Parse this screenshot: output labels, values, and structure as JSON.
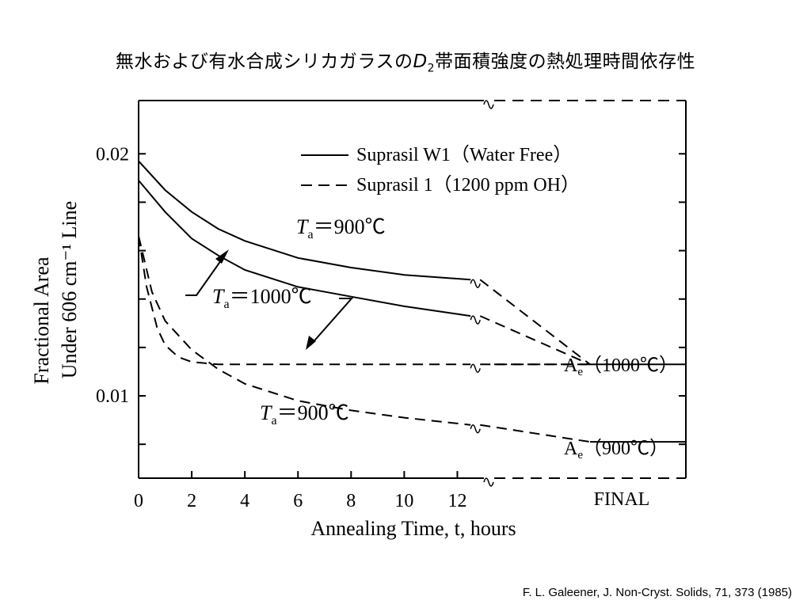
{
  "title": {
    "prefix": "無水および有水合成シリカガラスの",
    "symbol": "D",
    "subscript": "2",
    "suffix": "帯面積強度の熱処理時間依存性"
  },
  "citation": "F. L. Galeener, J. Non-Cryst. Solids, 71, 373 (1985)",
  "chart_data": {
    "type": "line",
    "xlabel": "Annealing Time, t, hours",
    "ylabel_line1": "Fractional Area",
    "ylabel_line2": "Under 606 cm⁻¹ Line",
    "xlim": [
      0,
      13
    ],
    "ylim": [
      0.0066,
      0.0222
    ],
    "x_ticks": [
      0,
      2,
      4,
      6,
      8,
      10,
      12
    ],
    "x_extra_tick": "FINAL",
    "y_tick_labels": [
      {
        "value": 0.02,
        "label": "0.02"
      },
      {
        "value": 0.01,
        "label": "0.01"
      }
    ],
    "legend": [
      {
        "label": "Suprasil W1（Water Free）",
        "style": "solid"
      },
      {
        "label": "Suprasil 1（1200 ppm OH）",
        "style": "dashed"
      }
    ],
    "series": [
      {
        "style": "solid",
        "temp": "900℃",
        "x": [
          0,
          1,
          2,
          3,
          4,
          6,
          8,
          10,
          12.5
        ],
        "y": [
          0.0197,
          0.0185,
          0.0176,
          0.0169,
          0.0164,
          0.0157,
          0.0153,
          0.015,
          0.0148
        ],
        "final": 0.0113
      },
      {
        "style": "solid",
        "temp": "1000℃",
        "x": [
          0,
          1,
          2,
          3,
          4,
          6,
          8,
          10,
          12.5
        ],
        "y": [
          0.0189,
          0.0176,
          0.0165,
          0.0158,
          0.0152,
          0.0145,
          0.0141,
          0.0137,
          0.0133
        ],
        "final": 0.0113
      },
      {
        "style": "dashed",
        "temp": "1000℃",
        "x": [
          0,
          0.3,
          0.7,
          1,
          1.5,
          2,
          3,
          4,
          6,
          8,
          10,
          12.5
        ],
        "y": [
          0.0166,
          0.0145,
          0.0128,
          0.0121,
          0.0116,
          0.0114,
          0.0113,
          0.0113,
          0.0113,
          0.0113,
          0.0113,
          0.0113
        ],
        "final": 0.0113
      },
      {
        "style": "dashed",
        "temp": "900℃",
        "x": [
          0,
          0.5,
          1,
          2,
          3,
          4,
          6,
          8,
          10,
          12.5
        ],
        "y": [
          0.0166,
          0.0143,
          0.0131,
          0.0119,
          0.0111,
          0.0105,
          0.0098,
          0.0094,
          0.0091,
          0.0088
        ],
        "final": 0.0081
      }
    ],
    "annotations": {
      "ta_symbol": "T",
      "ta_sub": "a",
      "ta_900_top": "＝900℃",
      "ta_1000": "＝1000℃",
      "ta_900_bottom": "＝900℃",
      "ae_symbol": "A",
      "ae_sub": "e",
      "ae_1000": "（1000℃）",
      "ae_900": "（900℃）"
    },
    "grid": false
  }
}
